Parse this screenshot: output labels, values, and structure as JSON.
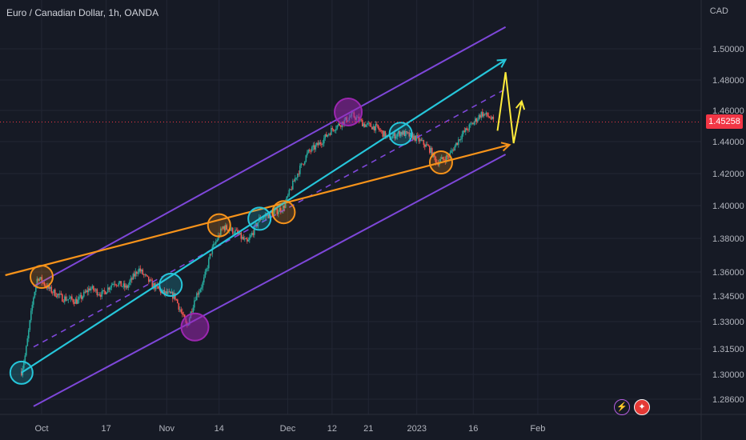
{
  "header": {
    "title": "Euro / Canadian Dollar, 1h, OANDA",
    "currency": "CAD"
  },
  "price_tag": "1.45258",
  "icons": [
    "lightning-icon",
    "canada-flag-icon"
  ],
  "colors": {
    "background": "#161a25",
    "channel": "#7e47d9",
    "cyan_trend": "#26c6da",
    "orange_trend": "#f7931a",
    "projection": "#ffeb3b",
    "price_tag": "#f23645"
  },
  "chart_data": {
    "type": "candlestick",
    "symbol": "Euro / Canadian Dollar",
    "interval": "1h",
    "source": "OANDA",
    "x_tick_labels": [
      "Oct",
      "17",
      "Nov",
      "14",
      "Dec",
      "12",
      "21",
      "2023",
      "16",
      "Feb"
    ],
    "y_tick_labels": [
      "1.50000",
      "1.48000",
      "1.46000",
      "1.44000",
      "1.42000",
      "1.40000",
      "1.38000",
      "1.36000",
      "1.34500",
      "1.33000",
      "1.31500",
      "1.30000",
      "1.28600"
    ],
    "last_price": 1.45258,
    "price_path": [
      [
        "Sep 26",
        1.3017
      ],
      [
        "Sep 27",
        1.312
      ],
      [
        "Sep 28",
        1.328
      ],
      [
        "Sep 29",
        1.345
      ],
      [
        "Sep 30",
        1.357
      ],
      [
        "Oct 3",
        1.349
      ],
      [
        "Oct 6",
        1.344
      ],
      [
        "Oct 10",
        1.342
      ],
      [
        "Oct 13",
        1.35
      ],
      [
        "Oct 16",
        1.346
      ],
      [
        "Oct 19",
        1.354
      ],
      [
        "Oct 22",
        1.35
      ],
      [
        "Oct 25",
        1.362
      ],
      [
        "Oct 28",
        1.353
      ],
      [
        "Oct 31",
        1.347
      ],
      [
        "Nov 3",
        1.345
      ],
      [
        "Nov 6",
        1.327
      ],
      [
        "Nov 8",
        1.344
      ],
      [
        "Nov 10",
        1.353
      ],
      [
        "Nov 12",
        1.372
      ],
      [
        "Nov 15",
        1.387
      ],
      [
        "Nov 18",
        1.384
      ],
      [
        "Nov 21",
        1.377
      ],
      [
        "Nov 24",
        1.392
      ],
      [
        "Nov 27",
        1.395
      ],
      [
        "Nov 30",
        1.399
      ],
      [
        "Dec 3",
        1.418
      ],
      [
        "Dec 6",
        1.433
      ],
      [
        "Dec 9",
        1.439
      ],
      [
        "Dec 12",
        1.448
      ],
      [
        "Dec 15",
        1.453
      ],
      [
        "Dec 17",
        1.457
      ],
      [
        "Dec 20",
        1.451
      ],
      [
        "Dec 23",
        1.449
      ],
      [
        "Dec 26",
        1.442
      ],
      [
        "Dec 29",
        1.446
      ],
      [
        "Jan 2",
        1.442
      ],
      [
        "Jan 5",
        1.436
      ],
      [
        "Jan 7",
        1.427
      ],
      [
        "Jan 10",
        1.431
      ],
      [
        "Jan 13",
        1.444
      ],
      [
        "Jan 16",
        1.452
      ],
      [
        "Jan 18",
        1.458
      ],
      [
        "Jan 20",
        1.456
      ],
      [
        "Jan 21",
        1.4526
      ]
    ],
    "annotations": {
      "parallel_channel": {
        "upper": [
          [
            "Sep 29",
            1.351
          ],
          [
            "Jan 24",
            1.514
          ]
        ],
        "median": [
          [
            "Sep 29",
            1.316
          ],
          [
            "Jan 24",
            1.474
          ]
        ],
        "lower": [
          [
            "Sep 29",
            1.282
          ],
          [
            "Jan 24",
            1.432
          ]
        ]
      },
      "cyan_trendline": [
        [
          "Sep 26",
          1.301
        ],
        [
          "Jan 24",
          1.493
        ]
      ],
      "orange_trendline": [
        [
          "Sep 22",
          1.358
        ],
        [
          "Jan 25",
          1.438
        ]
      ],
      "yellow_projection": [
        [
          "Jan 22",
          1.447
        ],
        [
          "Jan 24",
          1.485
        ],
        [
          "Jan 26",
          1.439
        ],
        [
          "Jan 28",
          1.466
        ]
      ],
      "touch_points": [
        {
          "color": "orange",
          "date": "Oct 1",
          "price": 1.357
        },
        {
          "color": "orange",
          "date": "Nov 14",
          "price": 1.388
        },
        {
          "color": "orange",
          "date": "Nov 30",
          "price": 1.396
        },
        {
          "color": "orange",
          "date": "Jan 8",
          "price": 1.427
        },
        {
          "color": "cyan",
          "date": "Sep 26",
          "price": 1.301
        },
        {
          "color": "cyan",
          "date": "Nov 2",
          "price": 1.352
        },
        {
          "color": "cyan",
          "date": "Nov 24",
          "price": 1.392
        },
        {
          "color": "cyan",
          "date": "Dec 29",
          "price": 1.445
        },
        {
          "color": "purple",
          "date": "Nov 8",
          "price": 1.327
        },
        {
          "color": "purple",
          "date": "Dec 16",
          "price": 1.459
        }
      ]
    }
  }
}
